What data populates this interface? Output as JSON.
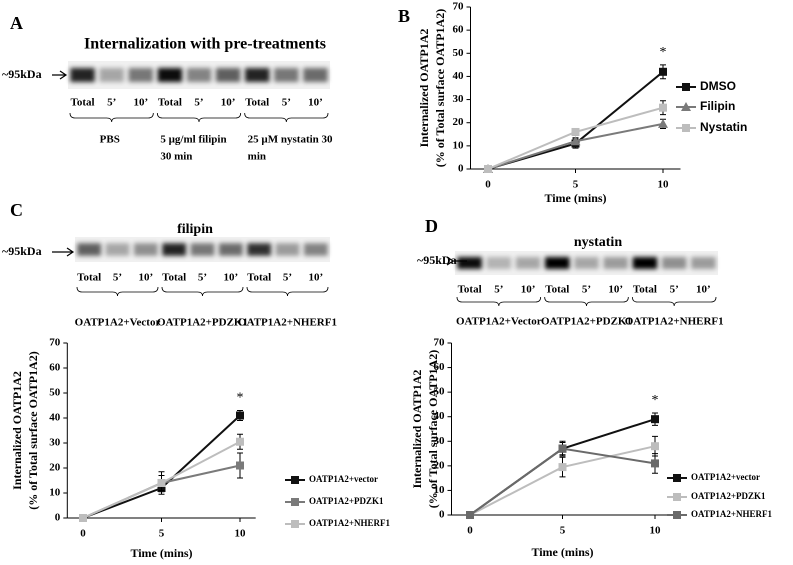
{
  "chart_data": [
    {
      "type": "line",
      "panel": "B",
      "x": [
        0,
        5,
        10
      ],
      "xlim": [
        -1,
        11
      ],
      "xticks": [
        0,
        5,
        10
      ],
      "ylim": [
        0,
        70
      ],
      "yticks": [
        0,
        10,
        20,
        30,
        40,
        50,
        60,
        70
      ],
      "x_label": "Time (mins)",
      "y_label": [
        "Internalized OATP1A2",
        "(% of Total surface OATP1A2)"
      ],
      "annotation": "*",
      "series": [
        {
          "name": "DMSO",
          "color": "#111111",
          "marker": "square",
          "values": [
            0,
            11,
            42
          ],
          "errors": [
            0,
            2,
            3
          ]
        },
        {
          "name": "Filipin",
          "color": "#7a7a7a",
          "marker": "triangle",
          "values": [
            0,
            12,
            19.5
          ],
          "errors": [
            0,
            1.5,
            2
          ]
        },
        {
          "name": "Nystatin",
          "color": "#bdbdbd",
          "marker": "square",
          "values": [
            0,
            16,
            26.5
          ],
          "errors": [
            0,
            1.5,
            3
          ]
        }
      ]
    },
    {
      "type": "line",
      "x": [
        0,
        5,
        10
      ],
      "xlim": [
        -1,
        11
      ],
      "xticks": [
        0,
        5,
        10
      ],
      "ylim": [
        0,
        70
      ],
      "yticks": [
        0,
        10,
        20,
        30,
        40,
        50,
        60,
        70
      ],
      "x_label": "Time (mins)",
      "y_label": [
        "Internalized OATP1A2",
        "(% of Total surface OATP1A2)"
      ],
      "annotation": "*",
      "series": [
        {
          "name": "OATP1A2+vector",
          "color": "#111111",
          "marker": "square",
          "values": [
            0,
            12,
            41
          ],
          "errors": [
            0,
            1.5,
            2
          ]
        },
        {
          "name": "OATP1A2+PDZK1",
          "color": "#7a7a7a",
          "marker": "square",
          "values": [
            0,
            14,
            21
          ],
          "errors": [
            0,
            4.5,
            5
          ]
        },
        {
          "name": "OATP1A2+NHERF1",
          "color": "#bdbdbd",
          "marker": "square",
          "values": [
            0,
            14,
            30.5
          ],
          "errors": [
            0,
            3,
            3
          ]
        }
      ]
    },
    {
      "type": "line",
      "x": [
        0,
        5,
        10
      ],
      "xlim": [
        -1,
        11
      ],
      "xticks": [
        0,
        5,
        10
      ],
      "ylim": [
        0,
        70
      ],
      "yticks": [
        0,
        10,
        20,
        30,
        40,
        50,
        60,
        70
      ],
      "x_label": "Time (mins)",
      "y_label": [
        "Internalized OATP1A2",
        "(% of Total surface OATP1A2)"
      ],
      "annotation": "*",
      "series": [
        {
          "name": "OATP1A2+vector",
          "color": "#111111",
          "marker": "square",
          "values": [
            0,
            27,
            39
          ],
          "errors": [
            0,
            2.5,
            2.5
          ]
        },
        {
          "name": "OATP1A2+PDZK1",
          "color": "#bdbdbd",
          "marker": "square",
          "values": [
            0,
            19.5,
            28
          ],
          "errors": [
            0,
            4,
            4
          ]
        },
        {
          "name": "OATP1A2+NHERF1",
          "color": "#6a6a6a",
          "marker": "square",
          "values": [
            0,
            27,
            21
          ],
          "errors": [
            0,
            3,
            4
          ]
        }
      ]
    }
  ],
  "blots": [
    {
      "panel": "A",
      "title": "Internalization with pre-treatments",
      "size_label": "~95kDa",
      "lanes": [
        "Total",
        "5’",
        "10’",
        "Total",
        "5’",
        "10’",
        "Total",
        "5’",
        "10’"
      ],
      "groups": [
        [
          "PBS"
        ],
        [
          "5 µg/ml filipin",
          "30 min"
        ],
        [
          "25 µM nystatin 30",
          "min"
        ]
      ]
    },
    {
      "panel": "C",
      "title": "filipin",
      "size_label": "~95kDa",
      "lanes": [
        "Total",
        "5’",
        "10’",
        "Total",
        "5’",
        "10’",
        "Total",
        "5’",
        "10’"
      ],
      "groups": [
        [
          "OATP1A2+Vector"
        ],
        [
          "OATP1A2+PDZK1"
        ],
        [
          "OATP1A2+NHERF1"
        ]
      ]
    },
    {
      "panel": "D",
      "title": "nystatin",
      "size_label": "~95kDa",
      "lanes": [
        "Total",
        "5’",
        "10’",
        "Total",
        "5’",
        "10’",
        "Total",
        "5’",
        "10’"
      ],
      "groups": [
        [
          "OATP1A2+Vector"
        ],
        [
          "OATP1A2+PDZK1"
        ],
        [
          "OATP1A2+NHERF1"
        ]
      ]
    }
  ]
}
